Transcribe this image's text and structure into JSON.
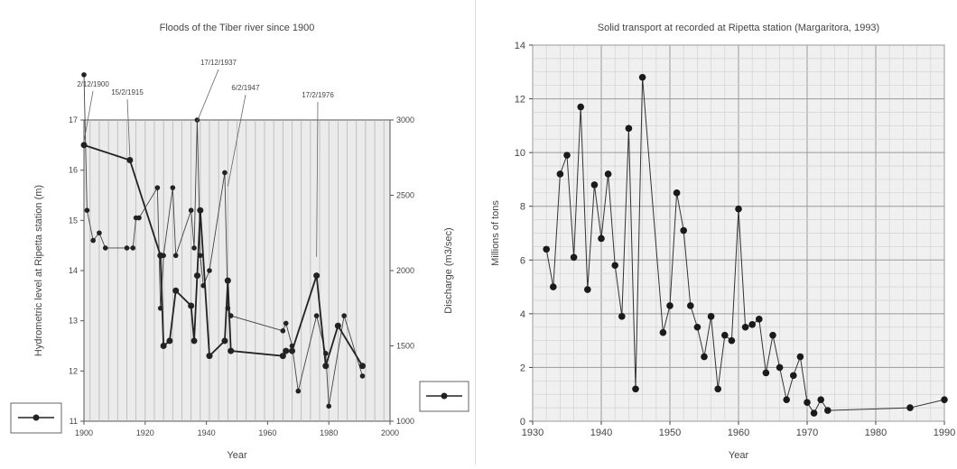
{
  "chart_data": [
    {
      "type": "line",
      "title": "Floods of the Tiber river since 1900",
      "xlabel": "Year",
      "ylabel": "Hydrometric level at Ripetta station (m)",
      "ylabel2": "Discharge (m3/sec)",
      "xlim": [
        1900,
        2000
      ],
      "ylim": [
        11,
        17
      ],
      "ylim2": [
        1000,
        3000
      ],
      "x_ticks": [
        "1900",
        "1920",
        "1940",
        "1960",
        "1980",
        "2000"
      ],
      "y_ticks": [
        "11",
        "12",
        "13",
        "14",
        "15",
        "16",
        "17"
      ],
      "y2_ticks": [
        "1000",
        "1500",
        "2000",
        "2500",
        "3000"
      ],
      "grid": true,
      "annotations": [
        {
          "text": "2/12/1900",
          "x": 1900,
          "y": 16.5
        },
        {
          "text": "15/2/1915",
          "x": 1915,
          "y": 16.2
        },
        {
          "text": "17/12/1937",
          "x": 1937,
          "y": 16.9
        },
        {
          "text": "6/2/1947",
          "x": 1947,
          "y": 15.6
        },
        {
          "text": "17/2/1976",
          "x": 1976,
          "y": 14.2
        }
      ],
      "series": [
        {
          "axis": "left",
          "marker": "dot",
          "x": [
            1900,
            1915,
            1925,
            1926,
            1928,
            1930,
            1935,
            1936,
            1937,
            1938,
            1941,
            1946,
            1947,
            1948,
            1965,
            1966,
            1968,
            1976,
            1979,
            1983,
            1991
          ],
          "y": [
            16.5,
            16.2,
            14.3,
            12.5,
            12.6,
            13.6,
            13.3,
            12.6,
            13.9,
            15.2,
            12.3,
            12.6,
            13.8,
            12.4,
            12.3,
            12.4,
            12.4,
            13.9,
            12.1,
            12.9,
            12.1
          ]
        },
        {
          "axis": "right",
          "marker": "small-dot",
          "x": [
            1900,
            1901,
            1903,
            1905,
            1907,
            1914,
            1916,
            1917,
            1918,
            1924,
            1925,
            1926,
            1929,
            1930,
            1935,
            1936,
            1937,
            1938,
            1939,
            1941,
            1946,
            1947,
            1948,
            1965,
            1966,
            1968,
            1970,
            1976,
            1979,
            1980,
            1985,
            1991
          ],
          "y": [
            3300,
            2400,
            2200,
            2250,
            2150,
            2150,
            2150,
            2350,
            2350,
            2550,
            1750,
            2100,
            2550,
            2100,
            2400,
            2150,
            3000,
            2100,
            1900,
            2000,
            2650,
            1750,
            1700,
            1600,
            1650,
            1500,
            1200,
            1700,
            1450,
            1100,
            1700,
            1300
          ]
        }
      ],
      "legend": "bottom-left"
    },
    {
      "type": "line",
      "title": "Solid transport at recorded at Ripetta station (Margaritora, 1993)",
      "xlabel": "Year",
      "ylabel": "Millions of tons",
      "xlim": [
        1930,
        1990
      ],
      "ylim": [
        0,
        14
      ],
      "x_ticks": [
        "1930",
        "1940",
        "1950",
        "1960",
        "1970",
        "1980",
        "1990"
      ],
      "y_ticks": [
        "0",
        "2",
        "4",
        "6",
        "8",
        "10",
        "12",
        "14"
      ],
      "grid": true,
      "series": [
        {
          "marker": "dot",
          "x": [
            1932,
            1933,
            1934,
            1935,
            1936,
            1937,
            1938,
            1939,
            1940,
            1941,
            1942,
            1943,
            1944,
            1945,
            1946,
            1949,
            1950,
            1951,
            1952,
            1953,
            1954,
            1955,
            1956,
            1957,
            1958,
            1959,
            1960,
            1961,
            1962,
            1963,
            1964,
            1965,
            1966,
            1967,
            1968,
            1969,
            1970,
            1971,
            1972,
            1973,
            1985,
            1990
          ],
          "y": [
            6.4,
            5.0,
            9.2,
            9.9,
            6.1,
            11.7,
            4.9,
            8.8,
            6.8,
            9.2,
            5.8,
            3.9,
            10.9,
            1.2,
            12.8,
            3.3,
            4.3,
            8.5,
            7.1,
            4.3,
            3.5,
            2.4,
            3.9,
            1.2,
            3.2,
            3.0,
            7.9,
            3.5,
            3.6,
            3.8,
            1.8,
            3.2,
            2.0,
            0.8,
            1.7,
            2.4,
            0.7,
            0.3,
            0.8,
            0.4,
            0.5,
            0.8
          ]
        }
      ]
    }
  ]
}
